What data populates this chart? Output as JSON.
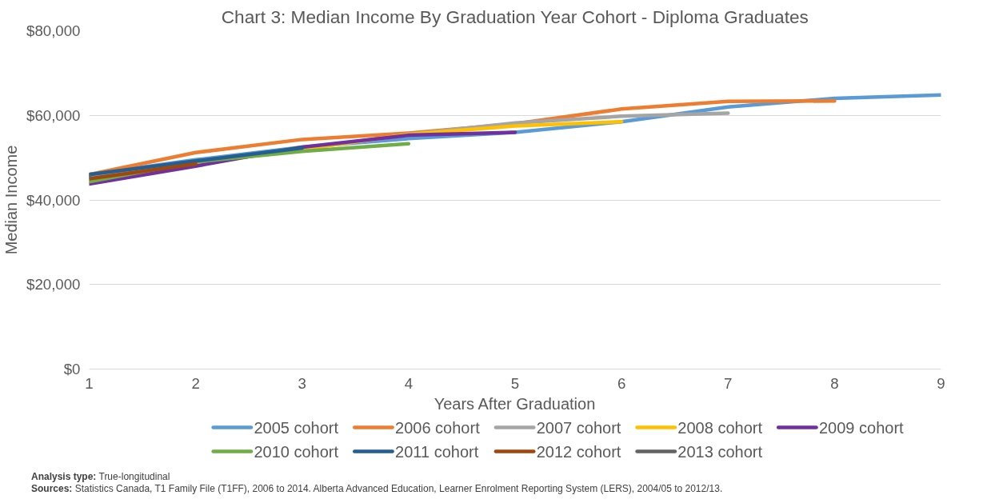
{
  "chart_data": {
    "type": "line",
    "title": "Chart 3: Median Income By Graduation Year Cohort - Diploma Graduates",
    "xlabel": "Years After Graduation",
    "ylabel": "Median Income",
    "x": [
      1,
      2,
      3,
      4,
      5,
      6,
      7,
      8,
      9
    ],
    "series": [
      {
        "name": "2005 cohort",
        "color": "#5b9bd5",
        "values": [
          46000,
          49500,
          52500,
          54500,
          56000,
          58500,
          62000,
          64000,
          64800
        ]
      },
      {
        "name": "2006 cohort",
        "color": "#ed7d31",
        "values": [
          46000,
          51200,
          54300,
          55800,
          58000,
          61500,
          63300,
          63400,
          null
        ]
      },
      {
        "name": "2007 cohort",
        "color": "#a5a5a5",
        "values": [
          45500,
          49000,
          52000,
          55500,
          58200,
          59800,
          60500,
          null,
          null
        ]
      },
      {
        "name": "2008 cohort",
        "color": "#ffc000",
        "values": [
          44500,
          48500,
          52000,
          55500,
          57500,
          58500,
          null,
          null,
          null
        ]
      },
      {
        "name": "2009 cohort",
        "color": "#7030a0",
        "values": [
          43800,
          48000,
          52500,
          55300,
          56000,
          null,
          null,
          null,
          null
        ]
      },
      {
        "name": "2010 cohort",
        "color": "#70ad47",
        "values": [
          44300,
          49000,
          51500,
          53300,
          null,
          null,
          null,
          null,
          null
        ]
      },
      {
        "name": "2011 cohort",
        "color": "#255e91",
        "values": [
          46000,
          49200,
          52300,
          null,
          null,
          null,
          null,
          null,
          null
        ]
      },
      {
        "name": "2012 cohort",
        "color": "#9e480e",
        "values": [
          45000,
          48500,
          null,
          null,
          null,
          null,
          null,
          null,
          null
        ]
      },
      {
        "name": "2013 cohort",
        "color": "#636363",
        "values": [
          45500,
          null,
          null,
          null,
          null,
          null,
          null,
          null,
          null
        ]
      }
    ],
    "xlim": [
      1,
      9
    ],
    "xticks": [
      1,
      2,
      3,
      4,
      5,
      6,
      7,
      8,
      9
    ],
    "ylim": [
      0,
      80000
    ],
    "yticks": [
      {
        "value": 0,
        "label": "$0"
      },
      {
        "value": 20000,
        "label": "$20,000"
      },
      {
        "value": 40000,
        "label": "$40,000"
      },
      {
        "value": 60000,
        "label": "$60,000"
      },
      {
        "value": 80000,
        "label": "$80,000"
      }
    ],
    "grid": "y",
    "legend": "bottom",
    "marker": "none",
    "line_style": "solid",
    "annotations": [
      "Analysis type: True-longitudinal",
      "Sources: Statistics Canada, T1 Family File (T1FF), 2006 to 2014. Alberta Advanced Education, Learner Enrolment Reporting System (LERS), 2004/05 to 2012/13."
    ]
  }
}
